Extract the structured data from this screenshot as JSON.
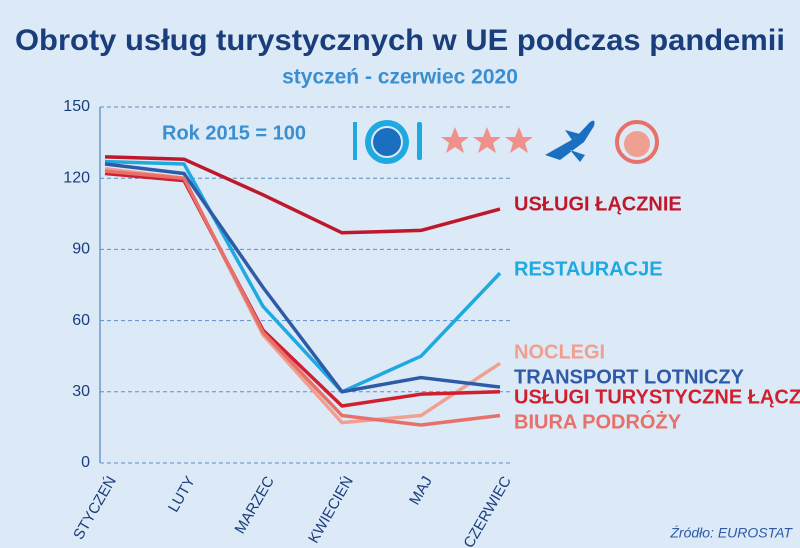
{
  "chart_data": {
    "type": "line",
    "title": "Obroty usług turystycznych w UE podczas pandemii",
    "subtitle": "styczeń - czerwiec 2020",
    "annotation": "Rok 2015 = 100",
    "source": "Źródło: EUROSTAT",
    "categories": [
      "STYCZEŃ",
      "LUTY",
      "MARZEC",
      "KWIECIEŃ",
      "MAJ",
      "CZERWIEC"
    ],
    "series": [
      {
        "name": "USŁUGI ŁĄCZNIE",
        "color": "#c0182b",
        "values": [
          129,
          128,
          113,
          97,
          98,
          107
        ]
      },
      {
        "name": "RESTAURACJE",
        "color": "#1fa9e1",
        "values": [
          127,
          126,
          66,
          30,
          45,
          80
        ]
      },
      {
        "name": "NOCLEGI",
        "color": "#f0a090",
        "values": [
          124,
          120,
          54,
          17,
          20,
          42
        ]
      },
      {
        "name": "TRANSPORT LOTNICZY",
        "color": "#2e5aa8",
        "values": [
          126,
          122,
          74,
          30,
          36,
          32
        ]
      },
      {
        "name": "USŁUGI TURYSTYCZNE ŁĄCZNIE",
        "color": "#d0202e",
        "values": [
          122,
          119,
          56,
          24,
          29,
          30
        ]
      },
      {
        "name": "BIURA PODRÓŻY",
        "color": "#e8706a",
        "values": [
          123,
          120,
          55,
          20,
          16,
          20
        ]
      }
    ],
    "ylim": [
      0,
      150
    ],
    "yticks": [
      0,
      30,
      60,
      90,
      120,
      150
    ],
    "grid": true
  }
}
